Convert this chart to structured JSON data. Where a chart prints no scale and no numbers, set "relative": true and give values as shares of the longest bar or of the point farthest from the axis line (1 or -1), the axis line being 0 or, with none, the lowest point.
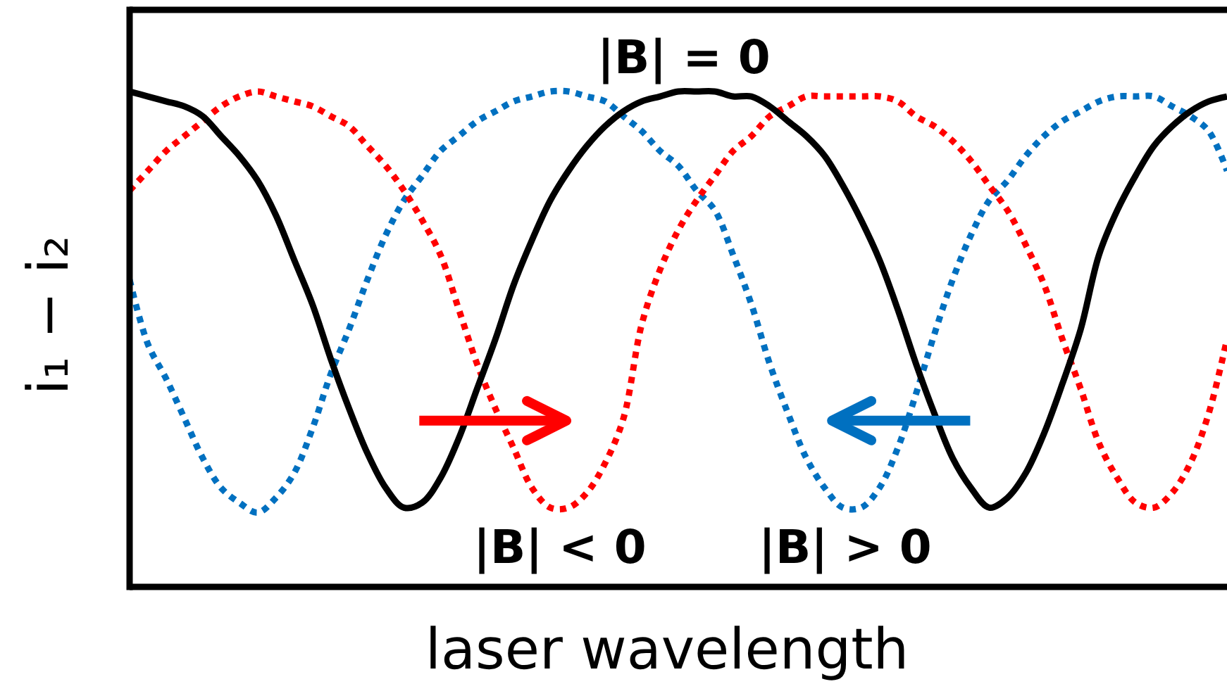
{
  "chart_data": {
    "type": "line",
    "relative": true,
    "xlabel": "laser wavelength",
    "ylabel": "i₁ − i₂",
    "categories": [
      null,
      null,
      null,
      null,
      null,
      null,
      null,
      null,
      null,
      null,
      null,
      null,
      null,
      null,
      null,
      null,
      null,
      null,
      null,
      null,
      null,
      null,
      null,
      null,
      null,
      null,
      null,
      null,
      null,
      null,
      null,
      null,
      null,
      null,
      null,
      null,
      null,
      null,
      null,
      null,
      null,
      null,
      null,
      null,
      null,
      null,
      null,
      null,
      null,
      null,
      null,
      null,
      null,
      null,
      null,
      null,
      null,
      null,
      null,
      null,
      null
    ],
    "series": [
      {
        "name": "|B| = 0",
        "color": "#000000",
        "line_style": "solid",
        "values": [
          1.0,
          0.99,
          0.98,
          0.97,
          0.95,
          0.91,
          0.87,
          0.82,
          0.75,
          0.66,
          0.57,
          0.46,
          0.36,
          0.27,
          0.2,
          0.16,
          0.17,
          0.22,
          0.3,
          0.4,
          0.5,
          0.61,
          0.7,
          0.78,
          0.84,
          0.89,
          0.93,
          0.96,
          0.98,
          0.99,
          1.0,
          1.0,
          1.0,
          0.99,
          0.99,
          0.97,
          0.94,
          0.91,
          0.87,
          0.81,
          0.74,
          0.66,
          0.56,
          0.45,
          0.35,
          0.26,
          0.2,
          0.16,
          0.18,
          0.23,
          0.31,
          0.41,
          0.52,
          0.67,
          0.76,
          0.83,
          0.89,
          0.93,
          0.96,
          0.98,
          0.99
        ]
      },
      {
        "name": "|B| < 0",
        "color": "#ff0000",
        "line_style": "dotted",
        "values": [
          0.8,
          0.84,
          0.88,
          0.91,
          0.94,
          0.97,
          0.99,
          1.0,
          0.99,
          0.98,
          0.97,
          0.95,
          0.93,
          0.89,
          0.85,
          0.8,
          0.74,
          0.67,
          0.56,
          0.45,
          0.36,
          0.28,
          0.2,
          0.16,
          0.16,
          0.19,
          0.25,
          0.34,
          0.53,
          0.64,
          0.72,
          0.78,
          0.83,
          0.88,
          0.91,
          0.95,
          0.97,
          0.99,
          0.99,
          0.99,
          0.99,
          0.99,
          0.98,
          0.95,
          0.93,
          0.9,
          0.86,
          0.81,
          0.76,
          0.69,
          0.61,
          0.5,
          0.4,
          0.29,
          0.22,
          0.17,
          0.16,
          0.19,
          0.25,
          0.35,
          0.5
        ]
      },
      {
        "name": "|B| > 0",
        "color": "#0070c0",
        "line_style": "dotted",
        "values": [
          0.62,
          0.49,
          0.42,
          0.34,
          0.26,
          0.2,
          0.17,
          0.15,
          0.18,
          0.23,
          0.32,
          0.43,
          0.52,
          0.62,
          0.71,
          0.78,
          0.83,
          0.88,
          0.91,
          0.94,
          0.96,
          0.98,
          0.99,
          1.0,
          1.0,
          0.99,
          0.98,
          0.95,
          0.92,
          0.88,
          0.85,
          0.8,
          0.76,
          0.67,
          0.57,
          0.45,
          0.35,
          0.26,
          0.2,
          0.16,
          0.16,
          0.2,
          0.28,
          0.39,
          0.51,
          0.62,
          0.71,
          0.78,
          0.82,
          0.87,
          0.91,
          0.94,
          0.96,
          0.98,
          0.99,
          0.99,
          0.99,
          0.97,
          0.95,
          0.92,
          0.84
        ]
      }
    ]
  }
}
